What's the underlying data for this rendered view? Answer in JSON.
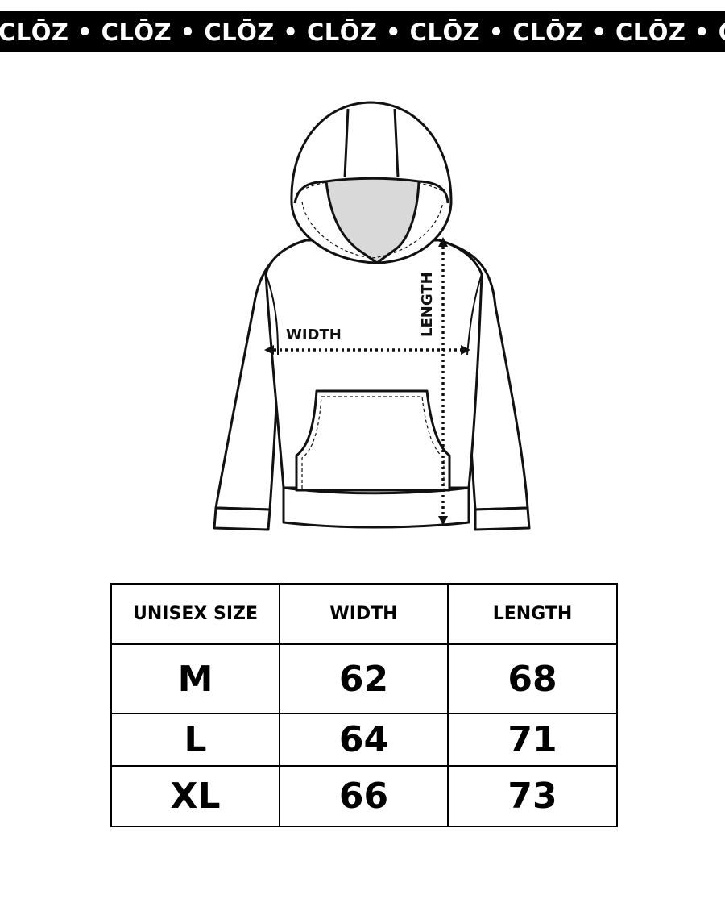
{
  "banner": {
    "text": "CLŌZ • CLŌZ • CLŌZ • CLŌZ • CLŌZ • CLŌZ • CLŌZ • CLŌZ"
  },
  "diagram": {
    "width_label": "WIDTH",
    "length_label": "LENGTH",
    "face_color": "#d9d9d9"
  },
  "size_table": {
    "headers": [
      "UNISEX SIZE",
      "WIDTH",
      "LENGTH"
    ],
    "rows": [
      {
        "size": "M",
        "width": "62",
        "length": "68"
      },
      {
        "size": "L",
        "width": "64",
        "length": "71"
      },
      {
        "size": "XL",
        "width": "66",
        "length": "73"
      }
    ]
  }
}
